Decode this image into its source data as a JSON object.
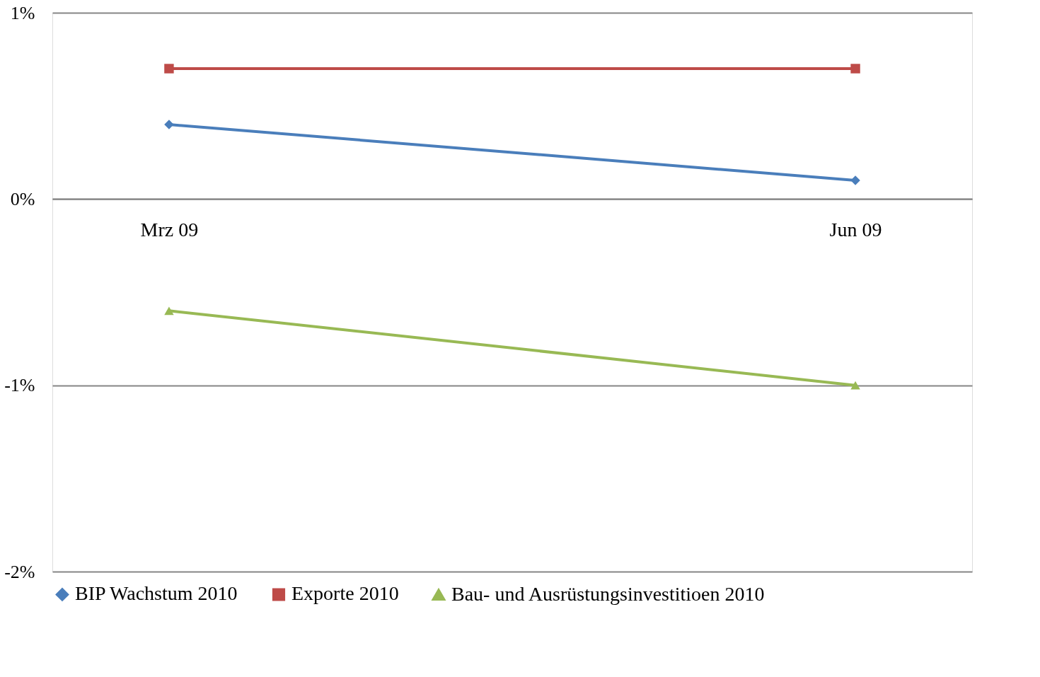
{
  "chart_data": {
    "type": "line",
    "categories": [
      "Mrz 09",
      "Jun 09"
    ],
    "series": [
      {
        "name": "BIP Wachstum 2010",
        "color": "#4a7ebb",
        "values": [
          0.4,
          0.1
        ],
        "marker": "diamond"
      },
      {
        "name": "Exporte 2010",
        "color": "#be4b48",
        "values": [
          0.7,
          0.7
        ],
        "marker": "square"
      },
      {
        "name": "Bau- und Ausrüstungsinvestitioen 2010",
        "color": "#98b954",
        "values": [
          -0.6,
          -1.0
        ],
        "marker": "triangle"
      }
    ],
    "ylim": [
      -2,
      1
    ],
    "yticks": [
      {
        "value": 1,
        "label": "1%"
      },
      {
        "value": 0,
        "label": "0%"
      },
      {
        "value": -1,
        "label": "-1%"
      },
      {
        "value": -2,
        "label": "-2%"
      }
    ],
    "grid": "y",
    "legend": "bottom",
    "line_style": "solid"
  }
}
